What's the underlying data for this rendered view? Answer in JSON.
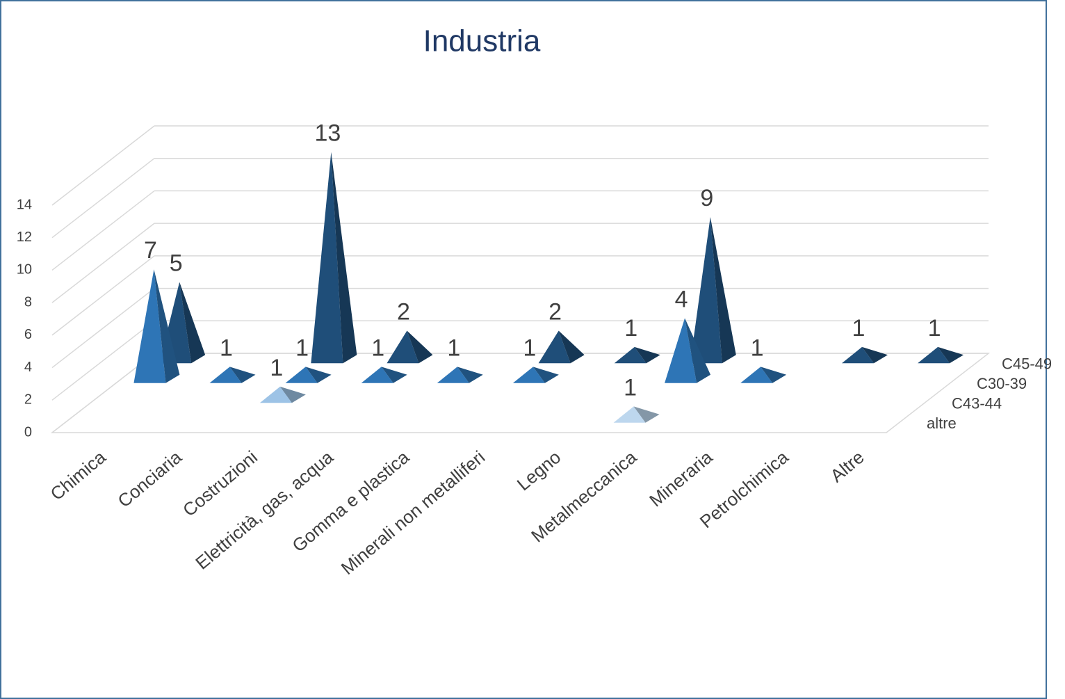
{
  "chart_data": {
    "type": "pyramid3d",
    "title": "Industria",
    "categories": [
      "Chimica",
      "Conciaria",
      "Costruzioni",
      "Elettricità, gas, acqua",
      "Gomma e plastica",
      "Minerali non metalliferi",
      "Legno",
      "Metalmeccanica",
      "Mineraria",
      "Petrolchimica",
      "Altre"
    ],
    "series": [
      {
        "name": "C45-49",
        "color": "#1f4e79",
        "values": [
          5,
          null,
          13,
          2,
          null,
          2,
          1,
          9,
          null,
          1,
          1
        ]
      },
      {
        "name": "C30-39",
        "color": "#2e75b6",
        "values": [
          7,
          1,
          1,
          1,
          1,
          1,
          null,
          4,
          1,
          null,
          null
        ]
      },
      {
        "name": "C43-44",
        "color": "#9dc3e6",
        "values": [
          null,
          null,
          1,
          null,
          null,
          null,
          null,
          null,
          null,
          null,
          null
        ]
      },
      {
        "name": "altre",
        "color": "#bdd7ee",
        "values": [
          null,
          null,
          null,
          null,
          null,
          null,
          null,
          1,
          null,
          null,
          null
        ]
      }
    ],
    "ylim": [
      0,
      14
    ],
    "yticks": [
      0,
      2,
      4,
      6,
      8,
      10,
      12,
      14
    ],
    "grid": true
  }
}
